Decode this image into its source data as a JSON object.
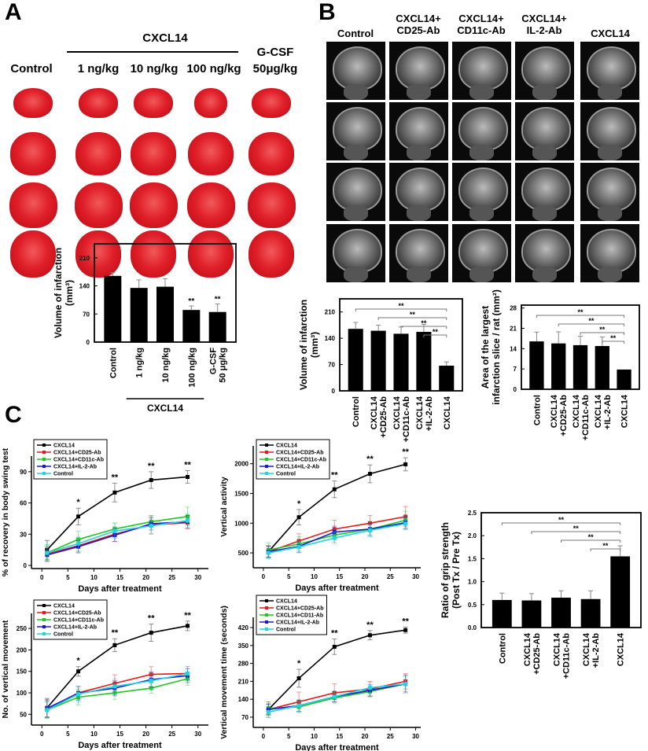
{
  "panel_a": {
    "letter": "A",
    "group_header": "CXCL14",
    "columns": [
      "Control",
      "1 ng/kg",
      "10 ng/kg",
      "100 ng/kg"
    ],
    "gcsf_line1": "G-CSF",
    "gcsf_line2": "50μg/kg"
  },
  "panel_b": {
    "letter": "B",
    "columns": [
      {
        "line1": "Control",
        "line2": ""
      },
      {
        "line1": "CXCL14+",
        "line2": "CD25-Ab"
      },
      {
        "line1": "CXCL14+",
        "line2": "CD11c-Ab"
      },
      {
        "line1": "CXCL14+",
        "line2": "IL-2-Ab"
      },
      {
        "line1": "CXCL14",
        "line2": ""
      }
    ]
  },
  "panel_c": {
    "letter": "C"
  },
  "colors": {
    "CXCL14": "#000000",
    "CD25": "#e41a1c",
    "CD11c": "#22c822",
    "IL2": "#1a1acc",
    "Control": "#22d4e0",
    "bar": "#000000"
  },
  "chart_data": [
    {
      "type": "bar",
      "ylabel": "Volume of infarction (mm³)",
      "categories": [
        "Control",
        "1 ng/kg",
        "10 ng/kg",
        "100 ng/kg",
        "G-CSF\n50 μg/kg"
      ],
      "values": [
        165,
        135,
        138,
        80,
        75
      ],
      "errors": [
        8,
        20,
        20,
        10,
        20
      ],
      "significance": [
        "",
        "",
        "",
        "**",
        "**"
      ],
      "group_label": {
        "text": "CXCL14",
        "from": 1,
        "to": 3
      },
      "ylim": [
        0,
        245
      ],
      "yticks": [
        0,
        70,
        140,
        210
      ]
    },
    {
      "type": "bar",
      "ylabel": "Volume of infarction (mm³)",
      "categories": [
        "Control",
        "CXCL14\n+CD25-Ab",
        "CXCL14\n+CD11c-Ab",
        "CXCL14\n+IL-2-Ab",
        "CXCL14"
      ],
      "values": [
        165,
        160,
        152,
        157,
        67
      ],
      "errors": [
        17,
        15,
        18,
        20,
        10
      ],
      "brackets": [
        {
          "from": 0,
          "to": 4,
          "label": "**"
        },
        {
          "from": 1,
          "to": 4,
          "label": "**"
        },
        {
          "from": 2,
          "to": 4,
          "label": "**"
        },
        {
          "from": 3,
          "to": 4,
          "label": "**"
        }
      ],
      "ylim": [
        0,
        245
      ],
      "yticks": [
        0,
        70,
        140,
        210
      ]
    },
    {
      "type": "bar",
      "ylabel": "Area of the largest\ninfarction slice / rat (mm²)",
      "categories": [
        "Control",
        "CXCL14\n+CD25-Ab",
        "CXCL14\n+CD11c-Ab",
        "CXCL14\n+IL-2-Ab",
        "CXCL14"
      ],
      "values": [
        16.5,
        15.8,
        15.2,
        14.9,
        6.8
      ],
      "errors": [
        3.2,
        4.0,
        3.1,
        3.1,
        0
      ],
      "brackets": [
        {
          "from": 0,
          "to": 4,
          "label": "**"
        },
        {
          "from": 1,
          "to": 4,
          "label": "**"
        },
        {
          "from": 2,
          "to": 4,
          "label": "**"
        },
        {
          "from": 3,
          "to": 4,
          "label": "**"
        }
      ],
      "ylim": [
        0,
        29
      ],
      "yticks": [
        0,
        7,
        14,
        21,
        28
      ]
    },
    {
      "type": "line",
      "xlabel": "Days after treatment",
      "ylabel": "% of recovery in body swing test",
      "x": [
        1,
        7,
        14,
        21,
        28
      ],
      "xlim": [
        -2,
        32
      ],
      "xticks": [
        0,
        5,
        10,
        15,
        20,
        25,
        30
      ],
      "ylim": [
        -3,
        105
      ],
      "yticks": [
        0,
        30,
        60,
        90
      ],
      "series": [
        {
          "name": "CXCL14",
          "color": "#000000",
          "values": [
            15,
            47,
            70,
            82,
            85
          ],
          "errors": [
            9,
            8,
            9,
            8,
            6
          ]
        },
        {
          "name": "CXCL14+CD25-Ab",
          "color": "#e41a1c",
          "values": [
            11,
            19,
            30,
            39,
            41
          ],
          "errors": [
            7,
            6,
            7,
            9,
            6
          ]
        },
        {
          "name": "CXCL14+CD11c-Ab",
          "color": "#22c822",
          "values": [
            12,
            25,
            35,
            42,
            47
          ],
          "errors": [
            7,
            8,
            6,
            5,
            9
          ]
        },
        {
          "name": "CXCL14+IL-2-Ab",
          "color": "#1a1acc",
          "values": [
            10,
            18,
            29,
            40,
            42
          ],
          "errors": [
            6,
            6,
            6,
            6,
            6
          ]
        },
        {
          "name": "Control",
          "color": "#22d4e0",
          "values": [
            12,
            21,
            33,
            38,
            43
          ],
          "errors": [
            8,
            7,
            7,
            7,
            7
          ]
        }
      ],
      "significance": [
        "",
        "*",
        "**",
        "**",
        "**"
      ]
    },
    {
      "type": "line",
      "xlabel": "Days after treatment",
      "ylabel": "Vertical activity",
      "x": [
        1,
        7,
        14,
        21,
        28
      ],
      "xlim": [
        -2,
        31
      ],
      "xticks": [
        0,
        5,
        10,
        15,
        20,
        25,
        30
      ],
      "ylim": [
        250,
        2300
      ],
      "yticks": [
        500,
        1000,
        1500,
        2000
      ],
      "series": [
        {
          "name": "CXCL14",
          "color": "#000000",
          "values": [
            520,
            1100,
            1570,
            1830,
            1990
          ],
          "errors": [
            90,
            130,
            140,
            150,
            110
          ]
        },
        {
          "name": "CXCL14+CD25-Ab",
          "color": "#e41a1c",
          "values": [
            520,
            700,
            900,
            1000,
            1110
          ],
          "errors": [
            100,
            120,
            150,
            130,
            170
          ]
        },
        {
          "name": "CXCL14+CD11c-Ab",
          "color": "#22c822",
          "values": [
            550,
            650,
            800,
            900,
            1050
          ],
          "errors": [
            120,
            120,
            120,
            130,
            150
          ]
        },
        {
          "name": "CXCL14+IL-2-Ab",
          "color": "#1a1acc",
          "values": [
            520,
            610,
            850,
            900,
            1010
          ],
          "errors": [
            100,
            100,
            100,
            100,
            100
          ]
        },
        {
          "name": "Control",
          "color": "#22d4e0",
          "values": [
            500,
            600,
            750,
            880,
            990
          ],
          "errors": [
            100,
            100,
            100,
            100,
            100
          ]
        }
      ],
      "significance": [
        "",
        "*",
        "**",
        "**",
        "**"
      ]
    },
    {
      "type": "line",
      "xlabel": "Days after treatment",
      "ylabel": "No. of vertical movement",
      "x": [
        1,
        7,
        14,
        21,
        28
      ],
      "xlim": [
        -2,
        32
      ],
      "xticks": [
        0,
        5,
        10,
        15,
        20,
        25,
        30
      ],
      "ylim": [
        25,
        285
      ],
      "yticks": [
        50,
        100,
        150,
        200,
        250
      ],
      "series": [
        {
          "name": "CXCL14",
          "color": "#000000",
          "values": [
            65,
            150,
            211,
            240,
            256
          ],
          "errors": [
            22,
            11,
            15,
            20,
            11
          ]
        },
        {
          "name": "CXCL14+CD25-Ab",
          "color": "#e41a1c",
          "values": [
            62,
            100,
            122,
            143,
            145
          ],
          "errors": [
            20,
            15,
            20,
            18,
            16
          ]
        },
        {
          "name": "CXCL14+CD11c-Ab",
          "color": "#22c822",
          "values": [
            60,
            90,
            100,
            111,
            133
          ],
          "errors": [
            18,
            18,
            15,
            12,
            15
          ]
        },
        {
          "name": "CXCL14+IL-2-Ab",
          "color": "#1a1acc",
          "values": [
            64,
            99,
            111,
            131,
            140
          ],
          "errors": [
            20,
            16,
            18,
            18,
            16
          ]
        },
        {
          "name": "Control",
          "color": "#22d4e0",
          "values": [
            60,
            97,
            115,
            128,
            145
          ],
          "errors": [
            20,
            18,
            18,
            18,
            16
          ]
        }
      ],
      "significance": [
        "",
        "*",
        "**",
        "**",
        "**"
      ]
    },
    {
      "type": "line",
      "xlabel": "Days after treatment",
      "ylabel": "Vertical movement time (seconds)",
      "x": [
        1,
        7,
        14,
        21,
        28
      ],
      "xlim": [
        -2,
        31
      ],
      "xticks": [
        0,
        5,
        10,
        15,
        20,
        25,
        30
      ],
      "ylim": [
        30,
        460
      ],
      "yticks": [
        70,
        140,
        210,
        280,
        350,
        420
      ],
      "series": [
        {
          "name": "CXCL14",
          "color": "#000000",
          "values": [
            100,
            222,
            345,
            390,
            410
          ],
          "errors": [
            20,
            35,
            30,
            18,
            12
          ]
        },
        {
          "name": "CXCL14+CD25-Ab",
          "color": "#e41a1c",
          "values": [
            100,
            130,
            165,
            180,
            210
          ],
          "errors": [
            30,
            38,
            35,
            30,
            30
          ]
        },
        {
          "name": "CXCL14+CD11-Ab",
          "color": "#22c822",
          "values": [
            105,
            110,
            145,
            170,
            200
          ],
          "errors": [
            25,
            22,
            20,
            20,
            30
          ]
        },
        {
          "name": "CXCL14+IL-2-Ab",
          "color": "#1a1acc",
          "values": [
            100,
            115,
            150,
            175,
            200
          ],
          "errors": [
            22,
            22,
            20,
            22,
            35
          ]
        },
        {
          "name": "Control",
          "color": "#22d4e0",
          "values": [
            90,
            115,
            150,
            185,
            200
          ],
          "errors": [
            22,
            22,
            22,
            22,
            30
          ]
        }
      ],
      "significance": [
        "",
        "*",
        "**",
        "**",
        "**"
      ]
    },
    {
      "type": "bar",
      "ylabel": "Ratio of grip strength\n(Post Tx / Pre Tx)",
      "categories": [
        "Control",
        "CXCL14\n+CD25-Ab",
        "CXCL14\n+CD11c-Ab",
        "CXCL14\n+IL-2-Ab",
        "CXCL14"
      ],
      "values": [
        0.6,
        0.59,
        0.65,
        0.62,
        1.55
      ],
      "errors": [
        0.15,
        0.15,
        0.15,
        0.18,
        0.23
      ],
      "brackets": [
        {
          "from": 0,
          "to": 4,
          "label": "**"
        },
        {
          "from": 1,
          "to": 4,
          "label": "**"
        },
        {
          "from": 2,
          "to": 4,
          "label": "**"
        },
        {
          "from": 3,
          "to": 4,
          "label": "**"
        }
      ],
      "ylim": [
        0,
        2.5
      ],
      "yticks": [
        0.0,
        0.5,
        1.0,
        1.5,
        2.0,
        2.5
      ]
    }
  ]
}
